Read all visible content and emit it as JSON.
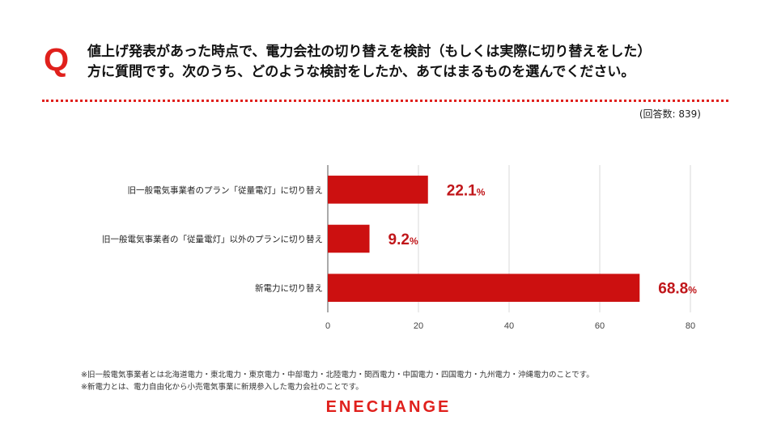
{
  "header": {
    "q_mark": "Q",
    "question_line1": "値上げ発表があった時点で、電力会社の切り替えを検討（もしくは実際に切り替えをした）",
    "question_line2": "方に質問です。次のうち、どのような検討をしたか、あてはまるものを選んでください。"
  },
  "respondents": "(回答数: 839)",
  "chart_data": {
    "type": "bar",
    "orientation": "horizontal",
    "categories": [
      "旧一般電気事業者のプラン「従量電灯」に切り替え",
      "旧一般電気事業者の「従量電灯」以外のプランに切り替え",
      "新電力に切り替え"
    ],
    "values": [
      22.1,
      9.2,
      68.8
    ],
    "value_labels": [
      "22.1",
      "9.2",
      "68.8"
    ],
    "value_unit": "%",
    "xlim": [
      0,
      80
    ],
    "xticks": [
      0,
      20,
      40,
      60,
      80
    ],
    "grid": true,
    "bar_color": "#cc1010",
    "label_color": "#c0161a"
  },
  "footnotes": [
    "※旧一般電気事業者とは北海道電力・東北電力・東京電力・中部電力・北陸電力・関西電力・中国電力・四国電力・九州電力・沖縄電力のことです。",
    "※新電力とは、電力自由化から小売電気事業に新規参入した電力会社のことです。"
  ],
  "brand": {
    "logo_text": "ENECHANGE",
    "accent": "#e0201c"
  }
}
